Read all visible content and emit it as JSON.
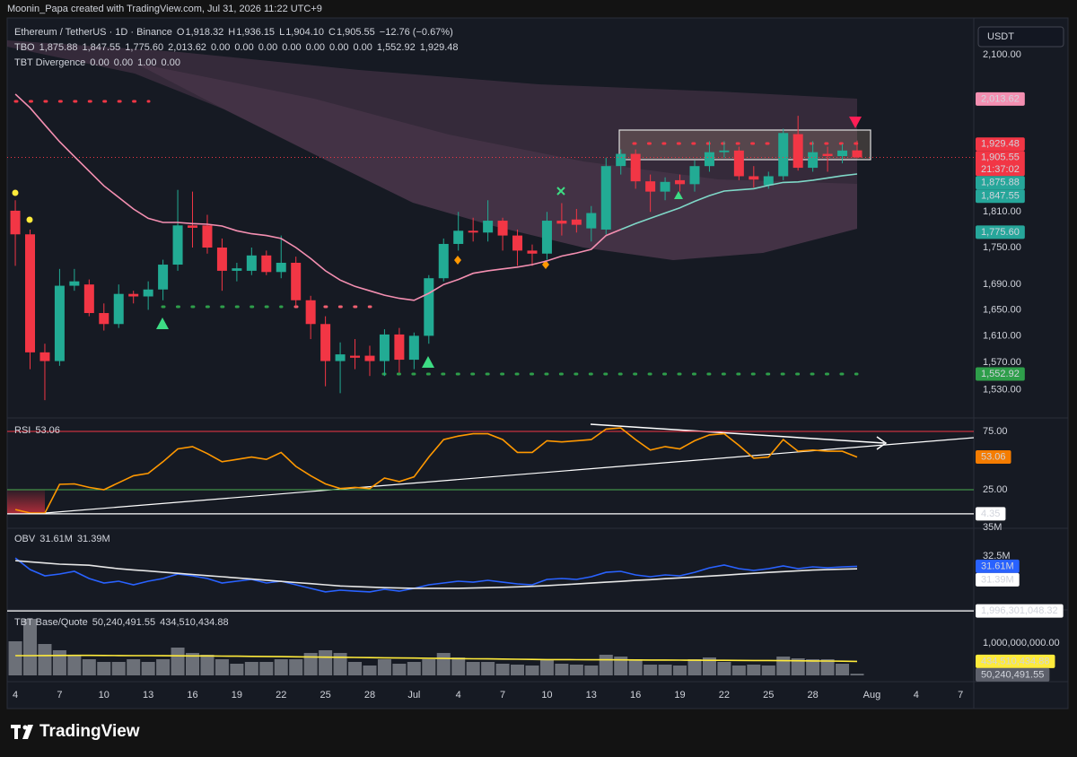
{
  "header": {
    "credit": "Moonin_Papa created with TradingView.com, Jul 31, 2026 11:22 UTC+9"
  },
  "currency": "USDT",
  "logo": "TradingView",
  "chart_data": [
    {
      "type": "candlestick",
      "title": "Ethereum / TetherUS · 1D · Binance",
      "ohlc_legend": [
        {
          "key": "O",
          "value": "1,918.32"
        },
        {
          "key": "H",
          "value": "1,936.15"
        },
        {
          "key": "L",
          "value": "1,904.10"
        },
        {
          "key": "C",
          "value": "1,905.55"
        }
      ],
      "change": "−12.76 (−0.67%)",
      "indicators": [
        {
          "name": "TBO",
          "values": [
            {
              "text": "1,875.88",
              "color": "#26a69a"
            },
            {
              "text": "1,847.55",
              "color": "#26a69a"
            },
            {
              "text": "1,775.60",
              "color": "#26a69a"
            },
            {
              "text": "2,013.62",
              "color": "#f48fb1"
            },
            {
              "text": "0.00",
              "color": "#4caf50"
            },
            {
              "text": "0.00",
              "color": "#ffffff"
            },
            {
              "text": "0.00",
              "color": "#ff9800"
            },
            {
              "text": "0.00",
              "color": "#9c27b0"
            },
            {
              "text": "0.00",
              "color": "#e040fb"
            },
            {
              "text": "0.00",
              "color": "#2962ff"
            },
            {
              "text": "0.00",
              "color": "#f23645"
            },
            {
              "text": "1,552.92",
              "color": "#4caf50"
            },
            {
              "text": "1,929.48",
              "color": "#f23645"
            }
          ]
        },
        {
          "name": "TBT Divergence",
          "values": [
            {
              "text": "0.00",
              "color": "#4caf50"
            },
            {
              "text": "0.00",
              "color": "#ffeb3b"
            },
            {
              "text": "1.00",
              "color": "#f23645"
            },
            {
              "text": "0.00",
              "color": "#ffeb3b"
            }
          ]
        }
      ],
      "up_color": "#22ab94",
      "down_color": "#f23645",
      "open": [
        1812,
        1772,
        1585,
        1572,
        1688,
        1690,
        1645,
        1628,
        1675,
        1671,
        1682,
        1722,
        1787,
        1787,
        1750,
        1712,
        1712,
        1737,
        1710,
        1725,
        1665,
        1628,
        1572,
        1580,
        1580,
        1572,
        1612,
        1574,
        1610,
        1700,
        1756,
        1778,
        1775,
        1795,
        1770,
        1745,
        1740,
        1795,
        1797,
        1782,
        1780,
        1890,
        1912,
        1863,
        1845,
        1865,
        1858,
        1890,
        1915,
        1918,
        1872,
        1856,
        1872,
        1948,
        1887,
        1912,
        1908,
        1918.32
      ],
      "high": [
        1830,
        1780,
        1598,
        1715,
        1715,
        1698,
        1660,
        1690,
        1680,
        1695,
        1730,
        1848,
        1845,
        1805,
        1765,
        1725,
        1750,
        1745,
        1770,
        1735,
        1672,
        1640,
        1600,
        1605,
        1595,
        1620,
        1622,
        1615,
        1705,
        1765,
        1810,
        1800,
        1830,
        1800,
        1780,
        1755,
        1810,
        1825,
        1815,
        1820,
        1905,
        1920,
        1920,
        1875,
        1870,
        1875,
        1900,
        1935,
        1935,
        1925,
        1890,
        1880,
        1958,
        1982,
        1935,
        1925,
        1930,
        1936.15
      ],
      "low": [
        1720,
        1560,
        1515,
        1565,
        1680,
        1640,
        1618,
        1622,
        1660,
        1650,
        1665,
        1712,
        1750,
        1740,
        1680,
        1695,
        1705,
        1705,
        1700,
        1655,
        1605,
        1535,
        1525,
        1560,
        1550,
        1550,
        1555,
        1560,
        1598,
        1695,
        1745,
        1760,
        1760,
        1745,
        1720,
        1720,
        1730,
        1770,
        1775,
        1760,
        1772,
        1875,
        1850,
        1810,
        1830,
        1845,
        1845,
        1880,
        1905,
        1865,
        1852,
        1850,
        1865,
        1882,
        1880,
        1880,
        1895,
        1904.1
      ],
      "close": [
        1772,
        1585,
        1572,
        1688,
        1695,
        1645,
        1628,
        1675,
        1671,
        1682,
        1722,
        1787,
        1783,
        1750,
        1712,
        1716,
        1737,
        1710,
        1725,
        1665,
        1628,
        1572,
        1582,
        1577,
        1572,
        1612,
        1574,
        1610,
        1700,
        1756,
        1778,
        1775,
        1795,
        1770,
        1745,
        1740,
        1795,
        1790,
        1788,
        1808,
        1890,
        1912,
        1863,
        1845,
        1862,
        1858,
        1890,
        1915,
        1918,
        1872,
        1866,
        1872,
        1950,
        1887,
        1915,
        1908,
        1918,
        1905.55
      ],
      "series": [
        {
          "color": "#f48fb1",
          "values": [
            2023,
            1997,
            1965,
            1934,
            1907,
            1881,
            1855,
            1835,
            1815,
            1799,
            1792,
            1792,
            1790,
            1789,
            1786,
            1778,
            1773,
            1770,
            1765,
            1750,
            1732,
            1712,
            1697,
            1687,
            1680,
            1673,
            1668,
            1665,
            1676,
            1690,
            1698,
            1708,
            1712,
            1715,
            1718,
            1722,
            1728,
            1736,
            1741,
            1747,
            1770,
            1780,
            null,
            null,
            null,
            null,
            null,
            null,
            null,
            null,
            null,
            null,
            null,
            null,
            null,
            null,
            null,
            null
          ]
        },
        {
          "color": "#7fd8c8",
          "values": [
            null,
            null,
            null,
            null,
            null,
            null,
            null,
            null,
            null,
            null,
            null,
            null,
            null,
            null,
            null,
            null,
            null,
            null,
            null,
            null,
            null,
            null,
            null,
            null,
            null,
            null,
            null,
            null,
            null,
            null,
            null,
            null,
            null,
            null,
            null,
            null,
            null,
            null,
            null,
            null,
            null,
            1780,
            1790,
            1799,
            1808,
            1817,
            1828,
            1838,
            1846,
            1848,
            1850,
            1856,
            1861,
            1862,
            1865,
            1869,
            1873,
            1875.88
          ]
        }
      ],
      "log": true,
      "xlim": [
        -0.55,
        64.9
      ],
      "xticks": [
        {
          "value": 0,
          "label": "4"
        },
        {
          "value": 3,
          "label": "7"
        },
        {
          "value": 6,
          "label": "10"
        },
        {
          "value": 9,
          "label": "13"
        },
        {
          "value": 12,
          "label": "16"
        },
        {
          "value": 15,
          "label": "19"
        },
        {
          "value": 18,
          "label": "22"
        },
        {
          "value": 21,
          "label": "25"
        },
        {
          "value": 24,
          "label": "28"
        },
        {
          "value": 27,
          "label": "Jul"
        },
        {
          "value": 30,
          "label": "4"
        },
        {
          "value": 33,
          "label": "7"
        },
        {
          "value": 36,
          "label": "10"
        },
        {
          "value": 39,
          "label": "13"
        },
        {
          "value": 42,
          "label": "16"
        },
        {
          "value": 45,
          "label": "19"
        },
        {
          "value": 48,
          "label": "22"
        },
        {
          "value": 51,
          "label": "25"
        },
        {
          "value": 54,
          "label": "28"
        },
        {
          "value": 58,
          "label": "Aug"
        },
        {
          "value": 61,
          "label": "4"
        },
        {
          "value": 64,
          "label": "7"
        }
      ],
      "ylim": [
        1491,
        2174
      ],
      "yticks": [
        {
          "value": 1530,
          "label": "1,530.00"
        },
        {
          "value": 1570,
          "label": "1,570.00"
        },
        {
          "value": 1610,
          "label": "1,610.00"
        },
        {
          "value": 1650,
          "label": "1,650.00"
        },
        {
          "value": 1690,
          "label": "1,690.00"
        },
        {
          "value": 1750,
          "label": "1,750.00"
        },
        {
          "value": 1810,
          "label": "1,810.00"
        },
        {
          "value": 2100,
          "label": "2,100.00"
        }
      ],
      "tags": [
        {
          "text": "2,013.62",
          "value": 2013.62,
          "color": "#f48fb1",
          "text_color": "#131722"
        },
        {
          "text": "1,929.48",
          "value": 1929.48,
          "color": "#f23645",
          "text_color": "#ffffff"
        },
        {
          "text": "1,905.55",
          "value": 1905.55,
          "color": "#f23645",
          "text_color": "#ffffff",
          "sub": "21:37:02"
        },
        {
          "text": "1,875.88",
          "value": 1875.88,
          "color": "#26a69a",
          "text_color": "#ffffff"
        },
        {
          "text": "1,847.55",
          "value": 1847.55,
          "color": "#26a69a",
          "text_color": "#ffffff"
        },
        {
          "text": "1,775.60",
          "value": 1775.6,
          "color": "#26a69a",
          "text_color": "#ffffff"
        },
        {
          "text": "1,552.92",
          "value": 1552.92,
          "color": "#2e9e4a",
          "text_color": "#ffffff"
        }
      ]
    },
    {
      "type": "line",
      "title": "RSI",
      "legend_values": [
        {
          "text": "53.06",
          "color": "#ff9800"
        }
      ],
      "series": [
        {
          "color": "#ff9800",
          "values": [
            8,
            5,
            5,
            29.6,
            30,
            27,
            25,
            31,
            37,
            39,
            49,
            60,
            62,
            56,
            49,
            51,
            53,
            51,
            57,
            45,
            37,
            30,
            26,
            27,
            26,
            35,
            32,
            36,
            53,
            68,
            71,
            73,
            73,
            68,
            57,
            57,
            67,
            66,
            67,
            68,
            77,
            78,
            68,
            59,
            62,
            60,
            67,
            72,
            73,
            63,
            52,
            53,
            68,
            58,
            59,
            58,
            58,
            53.06
          ]
        }
      ],
      "ylim": [
        -7.3,
        85.8
      ],
      "yticks": [
        {
          "value": 75,
          "label": "75.00"
        },
        {
          "value": 25,
          "label": "25.00"
        }
      ],
      "tick_line_colors": [
        "#f23645",
        "#4caf50"
      ],
      "tags": [
        {
          "text": "53.06",
          "value": 53.06,
          "color": "#f57c00",
          "text_color": "#131722"
        },
        {
          "text": "4.35",
          "value": 4.35,
          "color": "#ffffff",
          "text_color": "#131722",
          "hline": true
        }
      ]
    },
    {
      "type": "line",
      "title": "OBV",
      "legend_values": [
        {
          "text": "31.61M",
          "color": "#2962ff"
        },
        {
          "text": "31.39M",
          "color": "#ffffff"
        }
      ],
      "series": [
        {
          "color": "#2962ff",
          "values": [
            32.34,
            31.33,
            30.78,
            30.94,
            31.17,
            30.55,
            30.16,
            30.31,
            30.0,
            30.31,
            30.55,
            30.94,
            30.78,
            30.55,
            30.16,
            30.31,
            30.47,
            30.16,
            30.31,
            30.0,
            29.69,
            29.38,
            29.53,
            29.45,
            29.38,
            29.61,
            29.45,
            29.69,
            30.0,
            30.16,
            30.31,
            30.23,
            30.39,
            30.23,
            30.08,
            30.0,
            30.47,
            30.55,
            30.47,
            30.7,
            31.09,
            31.17,
            30.86,
            30.7,
            30.86,
            30.78,
            31.09,
            31.48,
            31.72,
            31.41,
            31.25,
            31.41,
            31.64,
            31.41,
            31.56,
            31.48,
            31.56,
            31.61
          ]
        },
        {
          "color": "#e6e6e6",
          "values": [
            32.1,
            32.0,
            31.9,
            31.8,
            31.75,
            31.7,
            31.55,
            31.4,
            31.3,
            31.2,
            31.1,
            31.0,
            30.9,
            30.8,
            30.7,
            30.6,
            30.5,
            30.4,
            30.3,
            30.2,
            30.1,
            30.0,
            29.9,
            29.85,
            29.8,
            29.75,
            29.72,
            29.7,
            29.7,
            29.7,
            29.7,
            29.72,
            29.75,
            29.78,
            29.82,
            29.87,
            29.93,
            30.0,
            30.07,
            30.15,
            30.23,
            30.3,
            30.38,
            30.45,
            30.53,
            30.6,
            30.68,
            30.76,
            30.84,
            30.92,
            31.0,
            31.08,
            31.15,
            31.22,
            31.28,
            31.32,
            31.36,
            31.39
          ]
        }
      ],
      "ylim": [
        27.97,
        35
      ],
      "yticks": [
        {
          "value": 35,
          "label": "35M"
        },
        {
          "value": 32.5,
          "label": "32.5M"
        }
      ],
      "tags": [
        {
          "text": "31.61M",
          "value": 31.61,
          "color": "#2962ff",
          "text_color": "#ffffff"
        },
        {
          "text": "31.39M",
          "value": 31.39,
          "color": "#ffffff",
          "text_color": "#131722"
        }
      ]
    },
    {
      "type": "bar",
      "title": "TBT Base/Quote",
      "legend_values": [
        {
          "text": "50,240,491.55",
          "color": "#9598a1"
        },
        {
          "text": "434,510,434.88",
          "color": "#ffeb3b"
        }
      ],
      "values": [
        1056000000,
        1750000000,
        972000000,
        778000000,
        639000000,
        500000000,
        417000000,
        417000000,
        500000000,
        417000000,
        500000000,
        861000000,
        694000000,
        639000000,
        500000000,
        361000000,
        417000000,
        417000000,
        500000000,
        500000000,
        694000000,
        778000000,
        694000000,
        417000000,
        306000000,
        500000000,
        361000000,
        417000000,
        500000000,
        694000000,
        556000000,
        417000000,
        417000000,
        361000000,
        333000000,
        306000000,
        500000000,
        361000000,
        333000000,
        306000000,
        639000000,
        583000000,
        500000000,
        333000000,
        333000000,
        306000000,
        500000000,
        556000000,
        417000000,
        306000000,
        333000000,
        306000000,
        583000000,
        528000000,
        500000000,
        500000000,
        361000000,
        50240491.55
      ],
      "color": "#8a8d96",
      "series": [
        {
          "color": "#ffeb3b",
          "values": [
            610000000,
            612000000,
            615000000,
            618000000,
            620000000,
            620000000,
            618000000,
            615000000,
            612000000,
            610000000,
            608000000,
            606000000,
            604000000,
            602000000,
            598000000,
            594000000,
            590000000,
            585000000,
            580000000,
            575000000,
            570000000,
            565000000,
            560000000,
            555000000,
            550000000,
            545000000,
            540000000,
            535000000,
            530000000,
            525000000,
            520000000,
            515000000,
            510000000,
            505000000,
            500000000,
            495000000,
            490000000,
            488000000,
            486000000,
            484000000,
            482000000,
            480000000,
            478000000,
            476000000,
            474000000,
            472000000,
            470000000,
            468000000,
            466000000,
            464000000,
            462000000,
            460000000,
            456000000,
            452000000,
            448000000,
            444000000,
            440000000,
            434510434.88
          ]
        }
      ],
      "ylim": [
        0,
        2000000000
      ],
      "yticks": [
        {
          "value": 1000000000,
          "label": "1,000,000,000.00"
        }
      ],
      "tags": [
        {
          "text": "1,996,301,048.32",
          "value": 1996301048.32,
          "color": "#ffffff",
          "text_color": "#131722",
          "hline": true
        },
        {
          "text": "434,510,434.88",
          "value": 434510434.88,
          "color": "#ffeb3b",
          "text_color": "#131722"
        },
        {
          "text": "50,240,491.55",
          "value": 50240491.55,
          "color": "#5d606b",
          "text_color": "#ffffff"
        }
      ]
    }
  ]
}
